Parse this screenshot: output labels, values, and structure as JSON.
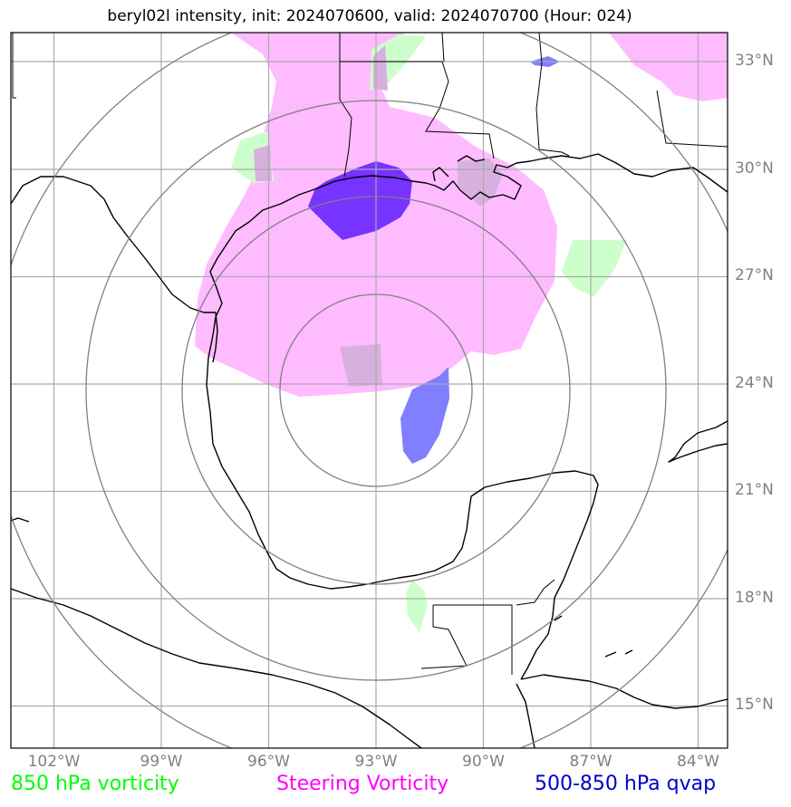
{
  "title": "beryl02l intensity, init: 2024070600, valid: 2024070700 (Hour: 024)",
  "map": {
    "lon_ticks": [
      "102°W",
      "99°W",
      "96°W",
      "93°W",
      "90°W",
      "87°W",
      "84°W"
    ],
    "lat_ticks": [
      "33°N",
      "30°N",
      "27°N",
      "24°N",
      "21°N",
      "18°N",
      "15°N"
    ],
    "grid_color": "#aaaaaa",
    "ring_color": "#808080",
    "coastline_color": "#000000"
  },
  "overlays": {
    "steering_vorticity_color": "#ffbbff",
    "vorticity_850_color": "#ccffcc",
    "qvap_light_color": "#7f7fff",
    "qvap_dark_color": "#7733ff"
  },
  "legend": {
    "vorticity_850": {
      "label": "850 hPa vorticity",
      "color": "#00ff00"
    },
    "steering_vorticity": {
      "label": "Steering Vorticity",
      "color": "#ff00ff"
    },
    "qvap": {
      "label": "500-850 hPa qvap",
      "color": "#0000cc"
    }
  }
}
